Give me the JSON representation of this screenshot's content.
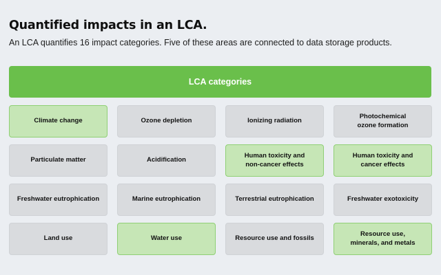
{
  "page": {
    "title": "Quantified impacts in an LCA.",
    "subtitle": "An LCA quantifies 16 impact categories. Five of these areas are connected to data storage products."
  },
  "header": {
    "label": "LCA categories",
    "color": "#6abf4b"
  },
  "colors": {
    "highlight": "#c6e6b6",
    "highlight_border": "#8fcf74",
    "default": "#d9dbde"
  },
  "categories": [
    {
      "label": "Climate change",
      "highlighted": true
    },
    {
      "label": "Ozone depletion",
      "highlighted": false
    },
    {
      "label": "Ionizing radiation",
      "highlighted": false
    },
    {
      "label": "Photochemical\nozone formation",
      "highlighted": false
    },
    {
      "label": "Particulate matter",
      "highlighted": false
    },
    {
      "label": "Acidification",
      "highlighted": false
    },
    {
      "label": "Human toxicity and\nnon-cancer effects",
      "highlighted": true
    },
    {
      "label": "Human toxicity and\ncancer effects",
      "highlighted": true
    },
    {
      "label": "Freshwater eutrophication",
      "highlighted": false
    },
    {
      "label": "Marine eutrophication",
      "highlighted": false
    },
    {
      "label": "Terrestrial eutrophication",
      "highlighted": false
    },
    {
      "label": "Freshwater exotoxicity",
      "highlighted": false
    },
    {
      "label": "Land use",
      "highlighted": false
    },
    {
      "label": "Water use",
      "highlighted": true
    },
    {
      "label": "Resource use and fossils",
      "highlighted": false
    },
    {
      "label": "Resource use,\nminerals, and metals",
      "highlighted": true
    }
  ]
}
